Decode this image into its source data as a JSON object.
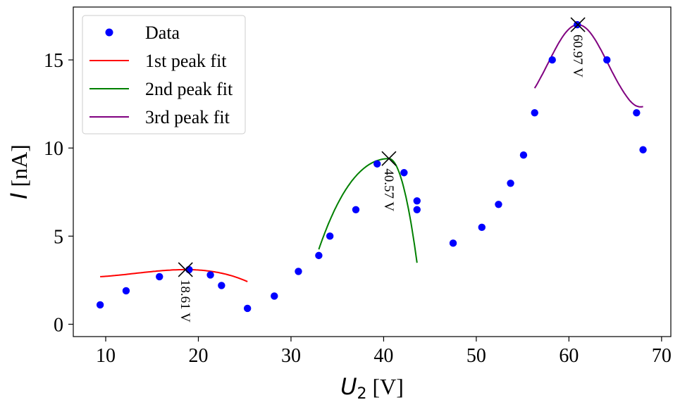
{
  "chart_data": {
    "type": "scatter",
    "xlabel_italic": "U",
    "xlabel_sub": "2",
    "xlabel_unit": "[V]",
    "ylabel_italic": "I",
    "ylabel_unit": "[nA]",
    "xlim": [
      6.5,
      71
    ],
    "ylim": [
      -0.7,
      18
    ],
    "xticks": [
      10,
      20,
      30,
      40,
      50,
      60,
      70
    ],
    "yticks": [
      0,
      5,
      10,
      15
    ],
    "grid": false,
    "legend_position": "top-left",
    "data_series": {
      "name": "Data",
      "color": "#0000ff",
      "x": [
        9.4,
        12.2,
        15.8,
        19.0,
        21.3,
        22.5,
        25.3,
        28.2,
        30.8,
        33.0,
        34.2,
        37.0,
        39.3,
        42.2,
        43.6,
        43.6,
        47.5,
        50.6,
        52.4,
        53.7,
        55.1,
        56.3,
        58.2,
        60.9,
        64.1,
        67.3,
        68.0
      ],
      "y": [
        1.1,
        1.9,
        2.7,
        3.1,
        2.8,
        2.2,
        0.9,
        1.6,
        3.0,
        3.9,
        5.0,
        6.5,
        9.1,
        8.6,
        7.0,
        6.5,
        4.6,
        5.5,
        6.8,
        8.0,
        9.6,
        12.0,
        15.0,
        17.0,
        15.0,
        12.0,
        9.9
      ]
    },
    "fits": [
      {
        "name": "1st peak fit",
        "color": "#ff0000",
        "x_range": [
          9.4,
          25.3
        ],
        "a": 3.1,
        "b": -0.0208,
        "c": 3,
        "peak_x": 18.61,
        "peak_y": 3.1,
        "annotation": "18.61 V"
      },
      {
        "name": "2nd peak fit",
        "color": "#008000",
        "x_range": [
          33.0,
          43.6
        ],
        "a": 9.4,
        "b": -0.046,
        "c": 4,
        "peak_x": 40.57,
        "peak_y": 9.4,
        "annotation": "40.57 V"
      },
      {
        "name": "3rd peak fit",
        "color": "#800080",
        "x_range": [
          56.3,
          68.0
        ],
        "a": 17.0,
        "b": -0.08,
        "c": 4,
        "peak_x": 60.97,
        "peak_y": 17.0,
        "annotation": "60.97 V"
      }
    ]
  }
}
